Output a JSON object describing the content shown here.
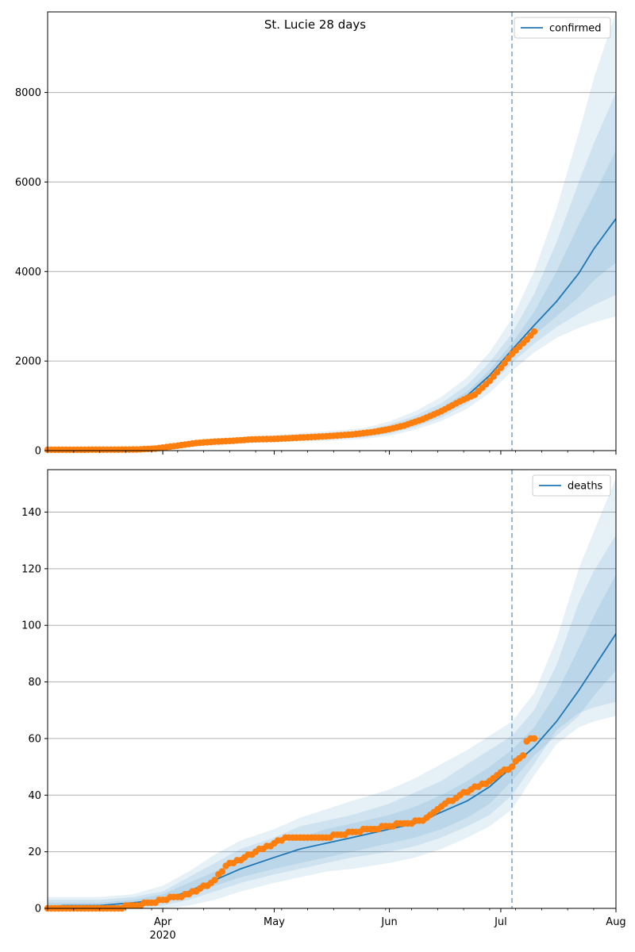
{
  "figure": {
    "title": "St. Lucie 28 days"
  },
  "chart_data": [
    {
      "type": "line",
      "title": "St. Lucie 28 days",
      "x_axis": {
        "range": [
          "2020-03-01",
          "2020-08-01"
        ],
        "ticks": [
          {
            "date": "2020-04-01",
            "label": "Apr",
            "sublabel": "2020"
          },
          {
            "date": "2020-05-01",
            "label": "May"
          },
          {
            "date": "2020-06-01",
            "label": "Jun"
          },
          {
            "date": "2020-07-01",
            "label": "Jul"
          },
          {
            "date": "2020-08-01",
            "label": "Aug"
          }
        ]
      },
      "y_axis": {
        "range": [
          0,
          9800
        ],
        "ticks": [
          0,
          2000,
          4000,
          6000,
          8000
        ],
        "grid": true
      },
      "legend": {
        "position": "top-right",
        "entries": [
          "confirmed"
        ]
      },
      "forecast_start": "2020-07-04",
      "series": [
        {
          "name": "confirmed",
          "kind": "model_median",
          "x": [
            "2020-03-01",
            "2020-03-15",
            "2020-03-25",
            "2020-04-05",
            "2020-04-15",
            "2020-04-25",
            "2020-05-05",
            "2020-05-15",
            "2020-05-25",
            "2020-06-01",
            "2020-06-08",
            "2020-06-15",
            "2020-06-22",
            "2020-06-28",
            "2020-07-04",
            "2020-07-10",
            "2020-07-16",
            "2020-07-22",
            "2020-07-26",
            "2020-08-01"
          ],
          "y": [
            20,
            25,
            35,
            80,
            170,
            230,
            270,
            310,
            360,
            470,
            640,
            880,
            1230,
            1680,
            2250,
            2800,
            3330,
            3960,
            4500,
            5180
          ]
        },
        {
          "name": "observed",
          "kind": "observed",
          "x": [
            "2020-03-01",
            "2020-03-10",
            "2020-03-20",
            "2020-03-25",
            "2020-03-30",
            "2020-04-05",
            "2020-04-10",
            "2020-04-15",
            "2020-04-20",
            "2020-04-25",
            "2020-05-01",
            "2020-05-08",
            "2020-05-15",
            "2020-05-22",
            "2020-05-28",
            "2020-06-01",
            "2020-06-05",
            "2020-06-10",
            "2020-06-15",
            "2020-06-20",
            "2020-06-24",
            "2020-06-28",
            "2020-07-01",
            "2020-07-04",
            "2020-07-06",
            "2020-07-08",
            "2020-07-10"
          ],
          "y": [
            20,
            20,
            22,
            25,
            45,
            110,
            170,
            200,
            220,
            250,
            260,
            290,
            320,
            360,
            420,
            480,
            560,
            700,
            880,
            1100,
            1250,
            1560,
            1850,
            2160,
            2320,
            2480,
            2660
          ]
        }
      ],
      "bands": [
        {
          "level": "outer",
          "lower": [
            10,
            15,
            20,
            50,
            120,
            170,
            200,
            220,
            260,
            330,
            470,
            660,
            940,
            1290,
            1780,
            2190,
            2520,
            2740,
            2860,
            3000
          ],
          "upper": [
            30,
            40,
            60,
            120,
            240,
            320,
            370,
            430,
            500,
            650,
            880,
            1200,
            1640,
            2200,
            2950,
            4000,
            5400,
            7100,
            8300,
            9800
          ]
        },
        {
          "level": "middle",
          "lower": [
            12,
            18,
            25,
            60,
            135,
            190,
            225,
            250,
            295,
            380,
            530,
            740,
            1050,
            1440,
            1960,
            2390,
            2760,
            3060,
            3250,
            3480
          ],
          "upper": [
            26,
            33,
            48,
            100,
            210,
            280,
            325,
            380,
            440,
            580,
            780,
            1060,
            1470,
            1970,
            2620,
            3500,
            4650,
            6000,
            6850,
            8000
          ]
        },
        {
          "level": "inner",
          "lower": [
            15,
            20,
            30,
            70,
            150,
            205,
            245,
            275,
            325,
            420,
            580,
            800,
            1140,
            1560,
            2100,
            2580,
            3000,
            3430,
            3800,
            4200
          ],
          "upper": [
            23,
            30,
            40,
            90,
            190,
            255,
            295,
            345,
            395,
            520,
            700,
            960,
            1320,
            1800,
            2400,
            3100,
            4000,
            5050,
            5700,
            6700
          ]
        }
      ]
    },
    {
      "type": "line",
      "x_axis": {
        "range": [
          "2020-03-01",
          "2020-08-01"
        ],
        "ticks": [
          {
            "date": "2020-04-01",
            "label": "Apr",
            "sublabel": "2020"
          },
          {
            "date": "2020-05-01",
            "label": "May"
          },
          {
            "date": "2020-06-01",
            "label": "Jun"
          },
          {
            "date": "2020-07-01",
            "label": "Jul"
          },
          {
            "date": "2020-08-01",
            "label": "Aug"
          }
        ]
      },
      "y_axis": {
        "range": [
          0,
          155
        ],
        "ticks": [
          0,
          20,
          40,
          60,
          80,
          100,
          120,
          140
        ],
        "grid": true
      },
      "legend": {
        "position": "top-right",
        "entries": [
          "deaths"
        ]
      },
      "forecast_start": "2020-07-04",
      "series": [
        {
          "name": "deaths",
          "kind": "model_median",
          "x": [
            "2020-03-01",
            "2020-03-05",
            "2020-03-15",
            "2020-03-24",
            "2020-04-01",
            "2020-04-08",
            "2020-04-15",
            "2020-04-22",
            "2020-05-01",
            "2020-05-08",
            "2020-05-15",
            "2020-05-22",
            "2020-06-01",
            "2020-06-08",
            "2020-06-15",
            "2020-06-22",
            "2020-06-28",
            "2020-07-04",
            "2020-07-10",
            "2020-07-16",
            "2020-07-22",
            "2020-07-26",
            "2020-08-01"
          ],
          "y": [
            0,
            1,
            1,
            2,
            3,
            6,
            10,
            14,
            18,
            21,
            23,
            25,
            28,
            30,
            34,
            38,
            43,
            50,
            57,
            66,
            77,
            85,
            97
          ]
        },
        {
          "name": "observed",
          "kind": "observed",
          "x": [
            "2020-03-01",
            "2020-03-20",
            "2020-03-24",
            "2020-03-29",
            "2020-04-01",
            "2020-04-05",
            "2020-04-10",
            "2020-04-15",
            "2020-04-18",
            "2020-04-22",
            "2020-04-26",
            "2020-05-01",
            "2020-05-05",
            "2020-05-15",
            "2020-05-22",
            "2020-05-28",
            "2020-06-05",
            "2020-06-10",
            "2020-06-15",
            "2020-06-20",
            "2020-06-23",
            "2020-06-28",
            "2020-07-01",
            "2020-07-04",
            "2020-07-06",
            "2020-07-07",
            "2020-07-08",
            "2020-07-10"
          ],
          "y": [
            0,
            0,
            1,
            2,
            3,
            4,
            6,
            10,
            15,
            17,
            20,
            23,
            25,
            25,
            27,
            28,
            30,
            31,
            36,
            40,
            42,
            45,
            48,
            50,
            53,
            54,
            59,
            60
          ]
        }
      ],
      "bands": [
        {
          "level": "outer",
          "lower": [
            0,
            0,
            0,
            0,
            0,
            1,
            3,
            6,
            9,
            11,
            13,
            14,
            16,
            18,
            21,
            25,
            29,
            35,
            47,
            58,
            64,
            66,
            68
          ],
          "upper": [
            4,
            4,
            4,
            5,
            8,
            13,
            19,
            24,
            28,
            32,
            35,
            38,
            42,
            46,
            51,
            56,
            61,
            66,
            76,
            95,
            120,
            133,
            152
          ]
        },
        {
          "level": "middle",
          "lower": [
            0,
            0,
            0,
            0,
            1,
            3,
            6,
            9,
            12,
            14,
            16,
            18,
            20,
            22,
            25,
            29,
            33,
            40,
            51,
            63,
            69,
            71,
            73
          ],
          "upper": [
            3,
            3,
            3,
            4,
            6,
            11,
            16,
            21,
            25,
            29,
            31,
            33,
            37,
            41,
            45,
            51,
            56,
            61,
            70,
            86,
            108,
            119,
            132
          ]
        },
        {
          "level": "inner",
          "lower": [
            0,
            0,
            0,
            1,
            2,
            4,
            8,
            11,
            14,
            16,
            18,
            20,
            23,
            25,
            28,
            32,
            37,
            45,
            54,
            61,
            68,
            75,
            84
          ],
          "upper": [
            2,
            2,
            2,
            3,
            5,
            9,
            13,
            18,
            22,
            25,
            28,
            30,
            33,
            36,
            40,
            45,
            50,
            56,
            64,
            76,
            92,
            103,
            118
          ]
        }
      ]
    }
  ],
  "colors": {
    "model_line": "#1f77b4",
    "observed": "#ff7f0e",
    "band": "#1f77b4",
    "forecast_line": "#7fa9cc",
    "grid": "#b0b0b0",
    "axes": "#000000"
  }
}
